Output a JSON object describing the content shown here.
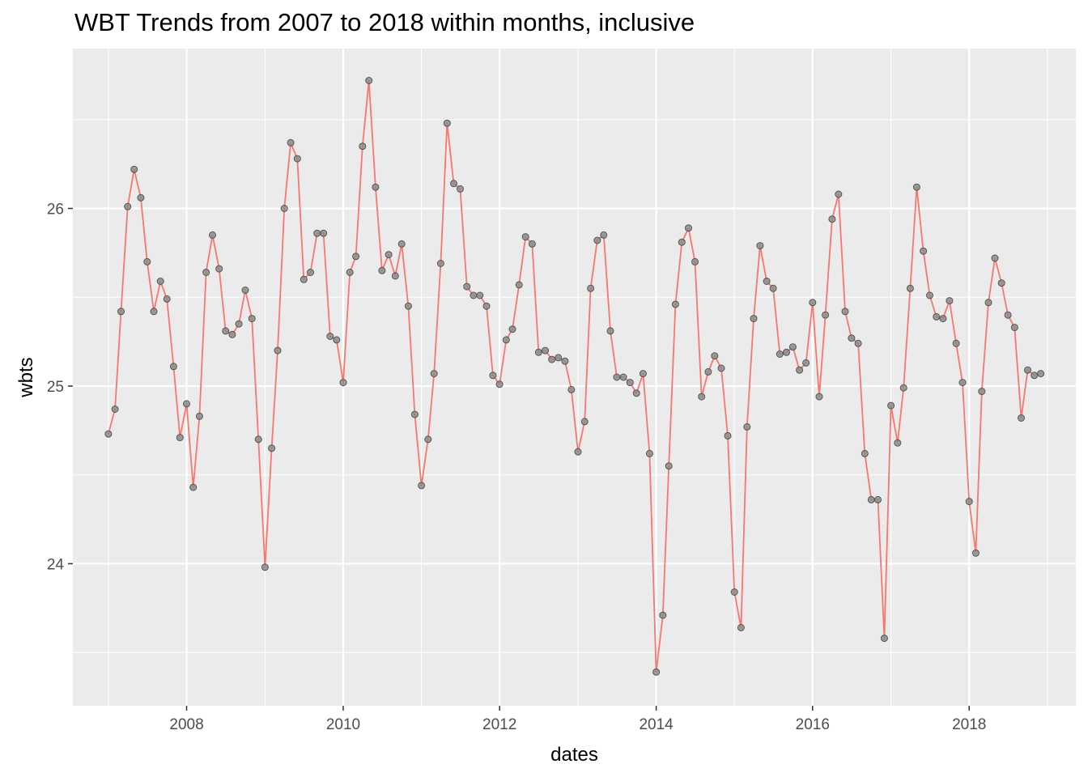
{
  "chart_data": {
    "type": "line",
    "title": "WBT Trends from 2007 to 2018 within months, inclusive",
    "xlabel": "dates",
    "ylabel": "wbts",
    "x_ticks": [
      "2008",
      "2010",
      "2012",
      "2014",
      "2016",
      "2018"
    ],
    "y_ticks": [
      "24",
      "25",
      "26"
    ],
    "xlim": [
      "2006-07-19",
      "2019-05-14"
    ],
    "ylim": [
      23.2,
      26.9
    ],
    "grid": true,
    "colors": {
      "panel": "#ebebeb",
      "grid": "#ffffff",
      "line": "#f8766d",
      "point_fill": "#8c8c8c",
      "point_stroke": "#555555"
    },
    "series": [
      {
        "x": [
          "2007-01",
          "2007-02",
          "2007-03",
          "2007-04",
          "2007-05",
          "2007-06",
          "2007-07",
          "2007-08",
          "2007-09",
          "2007-10",
          "2007-11",
          "2007-12",
          "2008-01",
          "2008-02",
          "2008-03",
          "2008-04",
          "2008-05",
          "2008-06",
          "2008-07",
          "2008-08",
          "2008-09",
          "2008-10",
          "2008-11",
          "2008-12",
          "2009-01",
          "2009-02",
          "2009-03",
          "2009-04",
          "2009-05",
          "2009-06",
          "2009-07",
          "2009-08",
          "2009-09",
          "2009-10",
          "2009-11",
          "2009-12",
          "2010-01",
          "2010-02",
          "2010-03",
          "2010-04",
          "2010-05",
          "2010-06",
          "2010-07",
          "2010-08",
          "2010-09",
          "2010-10",
          "2010-11",
          "2010-12",
          "2011-01",
          "2011-02",
          "2011-03",
          "2011-04",
          "2011-05",
          "2011-06",
          "2011-07",
          "2011-08",
          "2011-09",
          "2011-10",
          "2011-11",
          "2011-12",
          "2012-01",
          "2012-02",
          "2012-03",
          "2012-04",
          "2012-05",
          "2012-06",
          "2012-07",
          "2012-08",
          "2012-09",
          "2012-10",
          "2012-11",
          "2012-12",
          "2013-01",
          "2013-02",
          "2013-03",
          "2013-04",
          "2013-05",
          "2013-06",
          "2013-07",
          "2013-08",
          "2013-09",
          "2013-10",
          "2013-11",
          "2013-12",
          "2014-01",
          "2014-02",
          "2014-03",
          "2014-04",
          "2014-05",
          "2014-06",
          "2014-07",
          "2014-08",
          "2014-09",
          "2014-10",
          "2014-11",
          "2014-12",
          "2015-01",
          "2015-02",
          "2015-03",
          "2015-04",
          "2015-05",
          "2015-06",
          "2015-07",
          "2015-08",
          "2015-09",
          "2015-10",
          "2015-11",
          "2015-12",
          "2016-01",
          "2016-02",
          "2016-03",
          "2016-04",
          "2016-05",
          "2016-06",
          "2016-07",
          "2016-08",
          "2016-09",
          "2016-10",
          "2016-11",
          "2016-12",
          "2017-01",
          "2017-02",
          "2017-03",
          "2017-04",
          "2017-05",
          "2017-06",
          "2017-07",
          "2017-08",
          "2017-09",
          "2017-10",
          "2017-11",
          "2017-12",
          "2018-01",
          "2018-02",
          "2018-03",
          "2018-04",
          "2018-05",
          "2018-06",
          "2018-07",
          "2018-08",
          "2018-09",
          "2018-10",
          "2018-11",
          "2018-12"
        ],
        "y": [
          24.73,
          24.87,
          25.42,
          26.01,
          26.22,
          26.06,
          25.7,
          25.42,
          25.59,
          25.49,
          25.11,
          24.71,
          24.9,
          24.43,
          24.83,
          25.64,
          25.85,
          25.66,
          25.31,
          25.29,
          25.35,
          25.54,
          25.38,
          24.7,
          23.98,
          24.65,
          25.2,
          26.0,
          26.37,
          26.28,
          25.6,
          25.64,
          25.86,
          25.86,
          25.28,
          25.26,
          25.02,
          25.64,
          25.73,
          26.35,
          26.72,
          26.12,
          25.65,
          25.74,
          25.62,
          25.8,
          25.45,
          24.84,
          24.44,
          24.7,
          25.07,
          25.69,
          26.48,
          26.14,
          26.11,
          25.56,
          25.51,
          25.51,
          25.45,
          25.06,
          25.01,
          25.26,
          25.32,
          25.57,
          25.84,
          25.8,
          25.19,
          25.2,
          25.15,
          25.16,
          25.14,
          24.98,
          24.63,
          24.8,
          25.55,
          25.82,
          25.85,
          25.31,
          25.05,
          25.05,
          25.02,
          24.96,
          25.07,
          24.62,
          23.39,
          23.71,
          24.55,
          25.46,
          25.81,
          25.89,
          25.7,
          24.94,
          25.08,
          25.17,
          25.1,
          24.72,
          23.84,
          23.64,
          24.77,
          25.38,
          25.79,
          25.59,
          25.55,
          25.18,
          25.19,
          25.22,
          25.09,
          25.13,
          25.47,
          24.94,
          25.4,
          25.94,
          26.08,
          25.42,
          25.27,
          25.24,
          24.62,
          24.36,
          24.36,
          23.58,
          24.89,
          24.68,
          24.99,
          25.55,
          26.12,
          25.76,
          25.51,
          25.39,
          25.38,
          25.48,
          25.24,
          25.02,
          24.35,
          24.06,
          24.97,
          25.47,
          25.72,
          25.58,
          25.4,
          25.33,
          24.82,
          25.09,
          25.06,
          25.07
        ]
      }
    ]
  }
}
